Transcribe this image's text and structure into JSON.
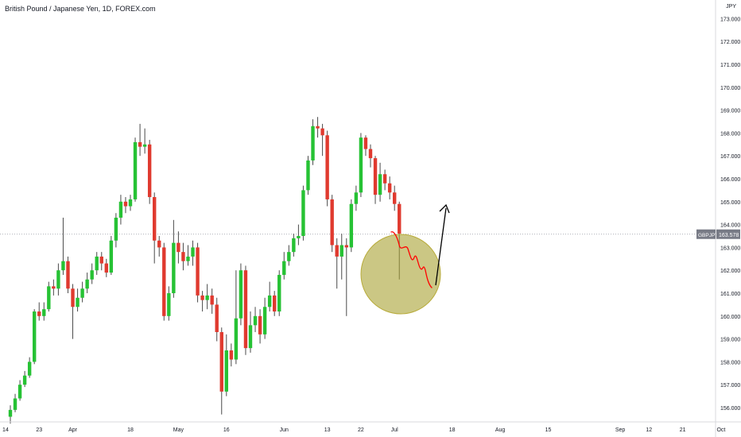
{
  "header": {
    "title": "British Pound / Japanese Yen, 1D, FOREX.com",
    "currency": "JPY"
  },
  "colors": {
    "up": "#26c234",
    "down": "#e03a2f",
    "axis_text": "#131722",
    "grid": "#e8e8e8",
    "last_price_bg": "#787b86",
    "highlight_fill": "#a8a132",
    "squiggle": "#ff0000",
    "arrow": "#000000"
  },
  "chart_data": {
    "type": "candlestick",
    "symbol": "GBPJPY",
    "last_price": "163.578",
    "price_ticks": [
      "156.000",
      "157.000",
      "158.000",
      "159.000",
      "160.000",
      "161.000",
      "162.000",
      "163.000",
      "164.000",
      "165.000",
      "166.000",
      "167.000",
      "168.000",
      "169.000",
      "170.000",
      "171.000",
      "172.000",
      "173.000"
    ],
    "ylim": [
      155.5,
      173.5
    ],
    "time_ticks": [
      {
        "label": "14",
        "slot": -1
      },
      {
        "label": "23",
        "slot": 6
      },
      {
        "label": "Apr",
        "slot": 13
      },
      {
        "label": "18",
        "slot": 25
      },
      {
        "label": "May",
        "slot": 35
      },
      {
        "label": "16",
        "slot": 45
      },
      {
        "label": "Jun",
        "slot": 57
      },
      {
        "label": "13",
        "slot": 66
      },
      {
        "label": "22",
        "slot": 73
      },
      {
        "label": "Jul",
        "slot": 80
      },
      {
        "label": "18",
        "slot": 92
      },
      {
        "label": "Aug",
        "slot": 102
      },
      {
        "label": "15",
        "slot": 112
      },
      {
        "label": "Sep",
        "slot": 127
      },
      {
        "label": "12",
        "slot": 133
      },
      {
        "label": "21",
        "slot": 140
      },
      {
        "label": "Oct",
        "slot": 148
      }
    ],
    "candles": [
      [
        155.6,
        155.9,
        155.3,
        156.1
      ],
      [
        155.9,
        156.4,
        155.8,
        156.6
      ],
      [
        156.4,
        157.0,
        156.3,
        157.2
      ],
      [
        157.0,
        157.4,
        156.9,
        157.6
      ],
      [
        157.4,
        158.0,
        157.3,
        158.2
      ],
      [
        158.0,
        160.2,
        157.9,
        160.3
      ],
      [
        160.2,
        160.0,
        159.8,
        160.6
      ],
      [
        160.0,
        160.3,
        159.8,
        160.6
      ],
      [
        160.3,
        161.3,
        160.2,
        161.5
      ],
      [
        161.3,
        161.2,
        160.9,
        161.6
      ],
      [
        161.2,
        162.0,
        160.9,
        162.3
      ],
      [
        162.0,
        162.4,
        161.8,
        164.3
      ],
      [
        162.4,
        161.2,
        161.0,
        162.6
      ],
      [
        161.2,
        160.4,
        159.0,
        161.4
      ],
      [
        160.4,
        160.8,
        160.2,
        161.2
      ],
      [
        160.8,
        161.2,
        160.6,
        161.5
      ],
      [
        161.2,
        161.6,
        161.0,
        161.9
      ],
      [
        161.6,
        162.0,
        161.4,
        162.3
      ],
      [
        162.0,
        162.6,
        161.8,
        162.8
      ],
      [
        162.6,
        162.3,
        162.0,
        162.8
      ],
      [
        162.3,
        161.9,
        161.7,
        162.5
      ],
      [
        161.9,
        163.3,
        161.8,
        163.5
      ],
      [
        163.3,
        164.3,
        163.0,
        164.5
      ],
      [
        164.3,
        165.0,
        164.0,
        165.3
      ],
      [
        165.0,
        164.8,
        164.5,
        165.2
      ],
      [
        164.8,
        165.1,
        164.6,
        165.3
      ],
      [
        165.1,
        167.6,
        165.0,
        167.8
      ],
      [
        167.6,
        167.4,
        167.0,
        168.4
      ],
      [
        167.4,
        167.5,
        167.1,
        168.2
      ],
      [
        167.5,
        165.2,
        164.9,
        167.7
      ],
      [
        165.2,
        163.3,
        162.3,
        165.4
      ],
      [
        163.3,
        163.0,
        162.6,
        163.5
      ],
      [
        163.0,
        160.0,
        159.8,
        163.2
      ],
      [
        160.0,
        161.0,
        159.8,
        161.3
      ],
      [
        161.0,
        163.2,
        160.8,
        164.2
      ],
      [
        163.2,
        162.8,
        162.3,
        163.7
      ],
      [
        162.8,
        162.4,
        162.0,
        163.2
      ],
      [
        162.4,
        162.6,
        162.2,
        163.1
      ],
      [
        162.6,
        163.0,
        162.2,
        163.3
      ],
      [
        163.0,
        160.9,
        160.6,
        163.2
      ],
      [
        160.9,
        160.7,
        160.2,
        161.1
      ],
      [
        160.7,
        160.9,
        160.3,
        161.4
      ],
      [
        160.9,
        160.5,
        160.1,
        161.2
      ],
      [
        160.5,
        159.3,
        158.9,
        160.8
      ],
      [
        159.3,
        156.7,
        155.7,
        159.5
      ],
      [
        156.7,
        158.5,
        156.5,
        159.2
      ],
      [
        158.5,
        158.1,
        157.8,
        158.8
      ],
      [
        158.1,
        159.9,
        157.9,
        162.0
      ],
      [
        159.9,
        162.0,
        159.6,
        162.3
      ],
      [
        162.0,
        158.6,
        158.3,
        162.2
      ],
      [
        158.6,
        159.6,
        158.4,
        160.2
      ],
      [
        159.6,
        160.0,
        159.3,
        160.4
      ],
      [
        160.0,
        159.2,
        158.8,
        160.3
      ],
      [
        159.2,
        160.4,
        159.0,
        160.8
      ],
      [
        160.4,
        160.9,
        160.2,
        161.5
      ],
      [
        160.9,
        160.2,
        160.0,
        161.1
      ],
      [
        160.2,
        161.8,
        160.0,
        162.0
      ],
      [
        161.8,
        162.4,
        161.6,
        162.8
      ],
      [
        162.4,
        162.8,
        162.2,
        163.1
      ],
      [
        162.8,
        163.4,
        162.6,
        163.6
      ],
      [
        163.4,
        163.5,
        163.1,
        164.0
      ],
      [
        163.5,
        165.5,
        163.3,
        165.7
      ],
      [
        165.5,
        166.8,
        165.3,
        167.0
      ],
      [
        166.8,
        168.3,
        166.6,
        168.6
      ],
      [
        168.3,
        168.2,
        167.8,
        168.7
      ],
      [
        168.2,
        167.9,
        167.0,
        168.4
      ],
      [
        167.9,
        165.1,
        164.8,
        168.1
      ],
      [
        165.1,
        163.1,
        162.8,
        165.3
      ],
      [
        163.1,
        162.6,
        161.2,
        163.4
      ],
      [
        162.6,
        163.1,
        161.6,
        163.6
      ],
      [
        163.1,
        163.0,
        160.0,
        163.4
      ],
      [
        163.0,
        164.9,
        162.8,
        165.1
      ],
      [
        164.9,
        165.4,
        164.6,
        165.7
      ],
      [
        165.4,
        167.8,
        165.2,
        168.0
      ],
      [
        167.8,
        167.3,
        167.0,
        167.9
      ],
      [
        167.3,
        166.9,
        166.5,
        167.5
      ],
      [
        166.9,
        165.3,
        164.9,
        167.0
      ],
      [
        165.3,
        166.2,
        165.0,
        166.7
      ],
      [
        166.2,
        165.8,
        165.5,
        166.4
      ],
      [
        165.8,
        165.4,
        165.1,
        166.1
      ],
      [
        165.4,
        164.9,
        164.6,
        165.7
      ],
      [
        164.9,
        163.6,
        161.6,
        165.0
      ]
    ]
  },
  "annotations": {
    "squiggle_label": "",
    "arrow_label": ""
  }
}
